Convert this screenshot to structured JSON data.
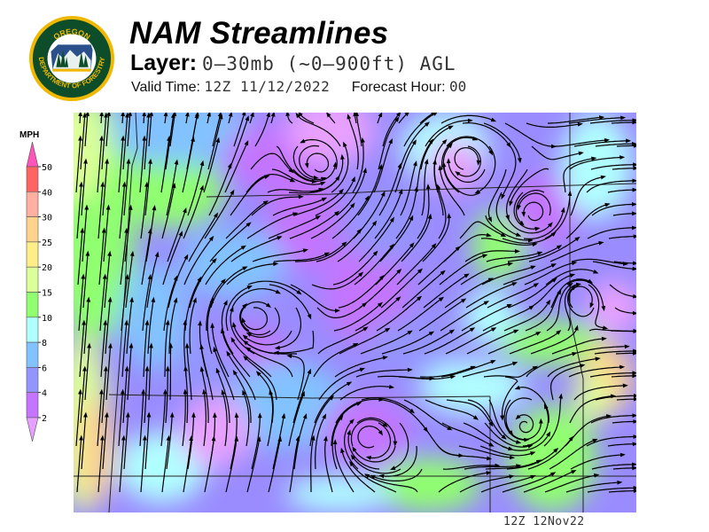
{
  "logo": {
    "text_top": "OREGON",
    "text_bottom": "DEPARTMENT OF FORESTRY",
    "colors": {
      "ring": "#f0b800",
      "field": "#0e4d2a"
    }
  },
  "header": {
    "title": "NAM Streamlines",
    "layer_label": "Layer:",
    "layer_value": "0–30mb (~0–900ft) AGL",
    "valid_label": "Valid Time:",
    "valid_value": "12Z 11/12/2022",
    "forecast_label": "Forecast Hour:",
    "forecast_value": "00"
  },
  "legend": {
    "unit": "MPH",
    "labels": [
      "50",
      "40",
      "30",
      "25",
      "20",
      "15",
      "10",
      "8",
      "6",
      "4",
      "2"
    ],
    "colors": [
      "#ff6464",
      "#ffb0a0",
      "#ffd38c",
      "#ffee88",
      "#ddff99",
      "#90ff70",
      "#b0ffff",
      "#82c2ff",
      "#9494ff",
      "#c474ff"
    ],
    "over_color": "#ff55bb",
    "under_color": "#e8a0ff"
  },
  "map": {
    "type": "streamlines",
    "variable": "wind speed"
  },
  "footer": {
    "timestamp": "12Z  12Nov22"
  }
}
